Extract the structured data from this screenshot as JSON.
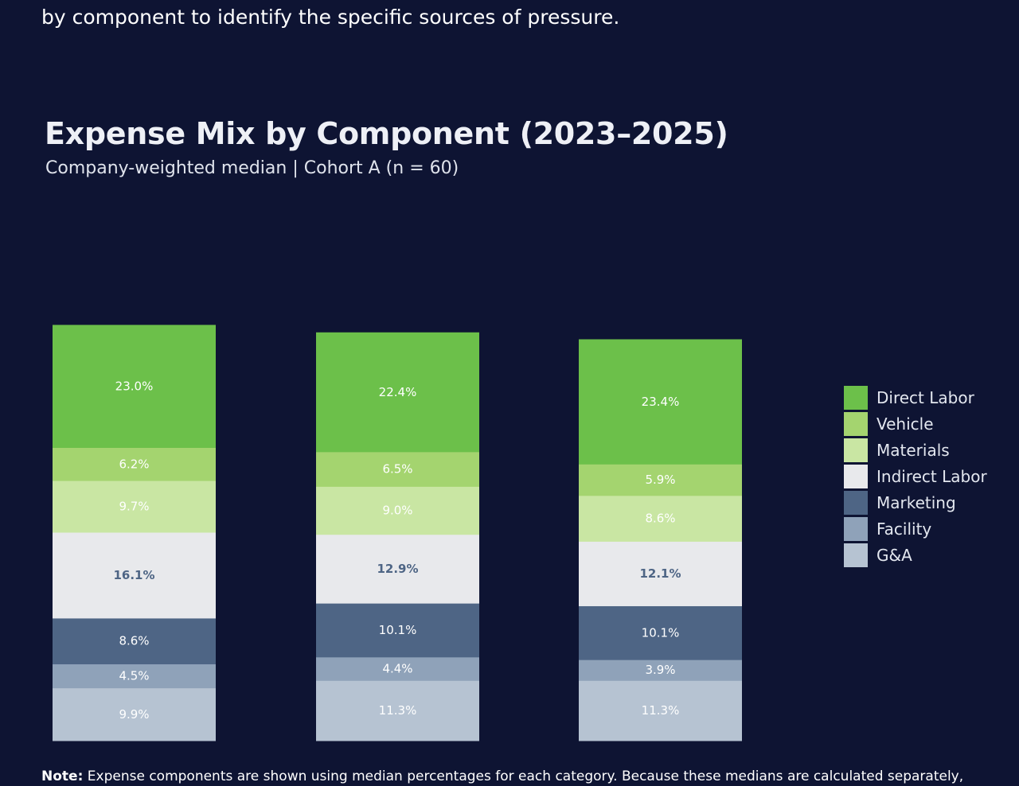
{
  "intro_text": "by component to identify the specific sources of pressure.",
  "note": {
    "label": "Note:",
    "text": "Expense components are shown using median percentages for each category. Because these medians are calculated separately,"
  },
  "chart_data": {
    "type": "bar",
    "stacked": true,
    "title": "Expense Mix by Component (2023–2025)",
    "subtitle": "Company-weighted median | Cohort A (n = 60)",
    "categories": [
      "",
      "",
      ""
    ],
    "legend_position": "right",
    "grid": false,
    "series": [
      {
        "name": "Direct Labor",
        "color": "#6cc04a",
        "label_color": "#ffffff",
        "values": [
          23.0,
          22.4,
          23.4
        ],
        "labels": [
          "23.0%",
          "22.4%",
          "23.4%"
        ]
      },
      {
        "name": "Vehicle",
        "color": "#a4d46f",
        "label_color": "#ffffff",
        "values": [
          6.2,
          6.5,
          5.9
        ],
        "labels": [
          "6.2%",
          "6.5%",
          "5.9%"
        ]
      },
      {
        "name": "Materials",
        "color": "#c9e6a3",
        "label_color": "#ffffff",
        "values": [
          9.7,
          9.0,
          8.6
        ],
        "labels": [
          "9.7%",
          "9.0%",
          "8.6%"
        ]
      },
      {
        "name": "Indirect Labor",
        "color": "#e8e9ec",
        "label_color": "#4e6585",
        "values": [
          16.1,
          12.9,
          12.1
        ],
        "labels": [
          "16.1%",
          "12.9%",
          "12.1%"
        ]
      },
      {
        "name": "Marketing",
        "color": "#4e6585",
        "label_color": "#ffffff",
        "values": [
          8.6,
          10.1,
          10.1
        ],
        "labels": [
          "8.6%",
          "10.1%",
          "10.1%"
        ]
      },
      {
        "name": "Facility",
        "color": "#8fa2b9",
        "label_color": "#ffffff",
        "values": [
          4.5,
          4.4,
          3.9
        ],
        "labels": [
          "4.5%",
          "4.4%",
          "3.9%"
        ]
      },
      {
        "name": "G&A",
        "color": "#b6c3d2",
        "label_color": "#ffffff",
        "values": [
          9.9,
          11.3,
          11.3
        ],
        "labels": [
          "9.9%",
          "11.3%",
          "11.3%"
        ]
      }
    ]
  }
}
